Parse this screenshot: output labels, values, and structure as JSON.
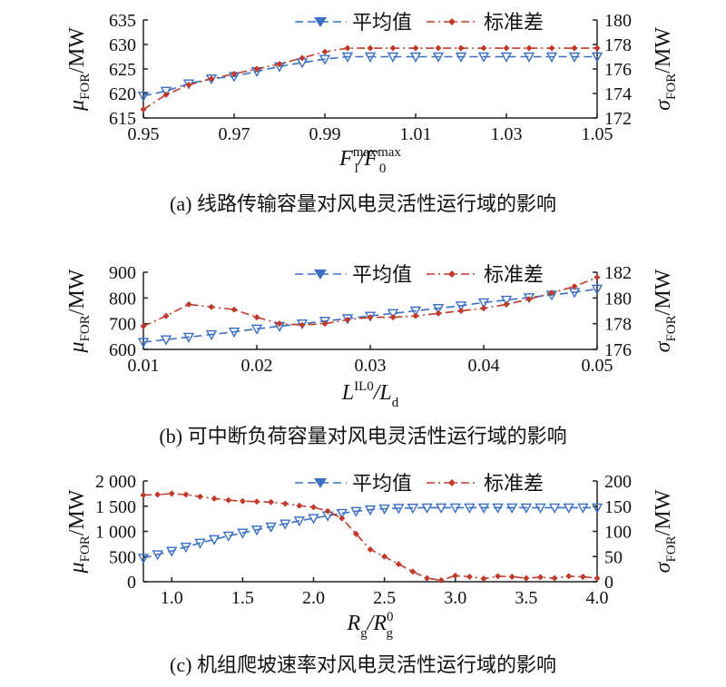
{
  "colors": {
    "mean": "#3a6fc4",
    "std": "#c0392b",
    "axis": "#222222"
  },
  "legend": {
    "mean_label": "平均值",
    "std_label": "标准差"
  },
  "chart_data": [
    {
      "type": "line",
      "caption": "(a) 线路传输容量对风电灵活性运行域的影响",
      "xlabel": {
        "main": "F",
        "sup1": "max",
        "sub1": "l",
        "slash": "/F",
        "sup2": "max",
        "sub2": "0"
      },
      "ylabel_left": {
        "mu": "μ",
        "sub": "FOR",
        "unit": "/MW"
      },
      "ylabel_right": {
        "sigma": "σ",
        "sub": "FOR",
        "unit": "/MW"
      },
      "xlim": [
        0.95,
        1.05
      ],
      "ylim_left": [
        615,
        635
      ],
      "ylim_right": [
        172,
        180
      ],
      "x_ticks": [
        0.95,
        0.97,
        0.99,
        1.01,
        1.03,
        1.05
      ],
      "x_tick_labels": [
        "0.95",
        "0.97",
        "0.99",
        "1.01",
        "1.03",
        "1.05"
      ],
      "yl_ticks": [
        615,
        620,
        625,
        630,
        635
      ],
      "yl_tick_labels": [
        "615",
        "620",
        "625",
        "630",
        "635"
      ],
      "yr_ticks": [
        172,
        174,
        176,
        178,
        180
      ],
      "yr_tick_labels": [
        "172",
        "174",
        "176",
        "178",
        "180"
      ],
      "series": [
        {
          "name": "平均值",
          "axis": "left",
          "x": [
            0.95,
            0.955,
            0.96,
            0.965,
            0.97,
            0.975,
            0.98,
            0.985,
            0.99,
            0.995,
            1.0,
            1.005,
            1.01,
            1.015,
            1.02,
            1.025,
            1.03,
            1.035,
            1.04,
            1.045,
            1.05
          ],
          "y": [
            619.5,
            620.5,
            622.0,
            623.0,
            623.5,
            624.5,
            625.5,
            626.3,
            627.0,
            627.5,
            627.5,
            627.5,
            627.5,
            627.5,
            627.5,
            627.5,
            627.5,
            627.5,
            627.5,
            627.5,
            627.5
          ]
        },
        {
          "name": "标准差",
          "axis": "right",
          "x": [
            0.95,
            0.955,
            0.96,
            0.965,
            0.97,
            0.975,
            0.98,
            0.985,
            0.99,
            0.995,
            1.0,
            1.005,
            1.01,
            1.015,
            1.02,
            1.025,
            1.03,
            1.035,
            1.04,
            1.045,
            1.05
          ],
          "y": [
            172.7,
            173.9,
            174.7,
            175.2,
            175.6,
            176.0,
            176.4,
            176.9,
            177.4,
            177.7,
            177.7,
            177.7,
            177.7,
            177.7,
            177.7,
            177.7,
            177.7,
            177.7,
            177.7,
            177.7,
            177.7
          ]
        }
      ]
    },
    {
      "type": "line",
      "caption": "(b) 可中断负荷容量对风电灵活性运行域的影响",
      "xlabel": {
        "main": "L",
        "sup1": "IL0",
        "sub1": "",
        "slash": "/L",
        "sup2": "",
        "sub2": "d"
      },
      "ylabel_left": {
        "mu": "μ",
        "sub": "FOR",
        "unit": "/MW"
      },
      "ylabel_right": {
        "sigma": "σ",
        "sub": "FOR",
        "unit": "/MW"
      },
      "xlim": [
        0.01,
        0.05
      ],
      "ylim_left": [
        600,
        900
      ],
      "ylim_right": [
        176,
        182
      ],
      "x_ticks": [
        0.01,
        0.02,
        0.03,
        0.04,
        0.05
      ],
      "x_tick_labels": [
        "0.01",
        "0.02",
        "0.03",
        "0.04",
        "0.05"
      ],
      "yl_ticks": [
        600,
        700,
        800,
        900
      ],
      "yl_tick_labels": [
        "600",
        "700",
        "800",
        "900"
      ],
      "yr_ticks": [
        176,
        178,
        180,
        182
      ],
      "yr_tick_labels": [
        "176",
        "178",
        "180",
        "182"
      ],
      "series": [
        {
          "name": "平均值",
          "axis": "left",
          "x": [
            0.01,
            0.012,
            0.014,
            0.016,
            0.018,
            0.02,
            0.022,
            0.024,
            0.026,
            0.028,
            0.03,
            0.032,
            0.034,
            0.036,
            0.038,
            0.04,
            0.042,
            0.044,
            0.046,
            0.048,
            0.05
          ],
          "y": [
            628,
            638,
            648,
            658,
            668,
            680,
            690,
            700,
            710,
            720,
            730,
            740,
            750,
            760,
            770,
            782,
            792,
            802,
            812,
            822,
            835
          ]
        },
        {
          "name": "标准差",
          "axis": "right",
          "x": [
            0.01,
            0.012,
            0.014,
            0.016,
            0.018,
            0.02,
            0.022,
            0.024,
            0.026,
            0.028,
            0.03,
            0.032,
            0.034,
            0.036,
            0.038,
            0.04,
            0.042,
            0.044,
            0.046,
            0.048,
            0.05
          ],
          "y": [
            177.8,
            178.6,
            179.5,
            179.3,
            179.1,
            178.5,
            178.0,
            177.9,
            178.0,
            178.3,
            178.5,
            178.5,
            178.6,
            178.8,
            179.0,
            179.2,
            179.5,
            179.9,
            180.4,
            180.9,
            181.6
          ]
        }
      ]
    },
    {
      "type": "line",
      "caption": "(c) 机组爬坡速率对风电灵活性运行域的影响",
      "xlabel": {
        "main": "R",
        "sup1": "",
        "sub1": "g",
        "slash": "/R",
        "sup2": "0",
        "sub2": "g"
      },
      "ylabel_left": {
        "mu": "μ",
        "sub": "FOR",
        "unit": "/MW"
      },
      "ylabel_right": {
        "sigma": "σ",
        "sub": "FOR",
        "unit": "/MW"
      },
      "xlim": [
        0.8,
        4.0
      ],
      "ylim_left": [
        0,
        2000
      ],
      "ylim_right": [
        0,
        200
      ],
      "x_ticks": [
        1.0,
        1.5,
        2.0,
        2.5,
        3.0,
        3.5,
        4.0
      ],
      "x_tick_labels": [
        "1.0",
        "1.5",
        "2.0",
        "2.5",
        "3.0",
        "3.5",
        "4.0"
      ],
      "yl_ticks": [
        0,
        500,
        1000,
        1500,
        2000
      ],
      "yl_tick_labels": [
        "0",
        "500",
        "1 000",
        "1 500",
        "2 000"
      ],
      "yr_ticks": [
        0,
        50,
        100,
        150,
        200
      ],
      "yr_tick_labels": [
        "0",
        "50",
        "100",
        "150",
        "200"
      ],
      "series": [
        {
          "name": "平均值",
          "axis": "left",
          "x": [
            0.8,
            0.9,
            1.0,
            1.1,
            1.2,
            1.3,
            1.4,
            1.5,
            1.6,
            1.7,
            1.8,
            1.9,
            2.0,
            2.1,
            2.2,
            2.3,
            2.4,
            2.5,
            2.6,
            2.7,
            2.8,
            2.9,
            3.0,
            3.1,
            3.2,
            3.3,
            3.4,
            3.5,
            3.6,
            3.7,
            3.8,
            3.9,
            4.0
          ],
          "y": [
            470,
            540,
            610,
            690,
            770,
            840,
            910,
            970,
            1030,
            1090,
            1150,
            1210,
            1260,
            1310,
            1360,
            1400,
            1430,
            1450,
            1460,
            1465,
            1470,
            1470,
            1470,
            1470,
            1470,
            1470,
            1470,
            1470,
            1470,
            1470,
            1470,
            1470,
            1470
          ]
        },
        {
          "name": "标准差",
          "axis": "right",
          "x": [
            0.8,
            0.9,
            1.0,
            1.1,
            1.2,
            1.3,
            1.4,
            1.5,
            1.6,
            1.7,
            1.8,
            1.9,
            2.0,
            2.1,
            2.2,
            2.3,
            2.4,
            2.5,
            2.6,
            2.7,
            2.8,
            2.9,
            3.0,
            3.1,
            3.2,
            3.3,
            3.4,
            3.5,
            3.6,
            3.7,
            3.8,
            3.9,
            4.0
          ],
          "y": [
            172,
            173,
            175,
            173,
            169,
            165,
            162,
            160,
            159,
            158,
            155,
            151,
            148,
            140,
            126,
            95,
            64,
            50,
            35,
            20,
            7,
            3,
            12,
            10,
            6,
            11,
            10,
            7,
            9,
            7,
            11,
            10,
            7
          ]
        }
      ]
    }
  ]
}
